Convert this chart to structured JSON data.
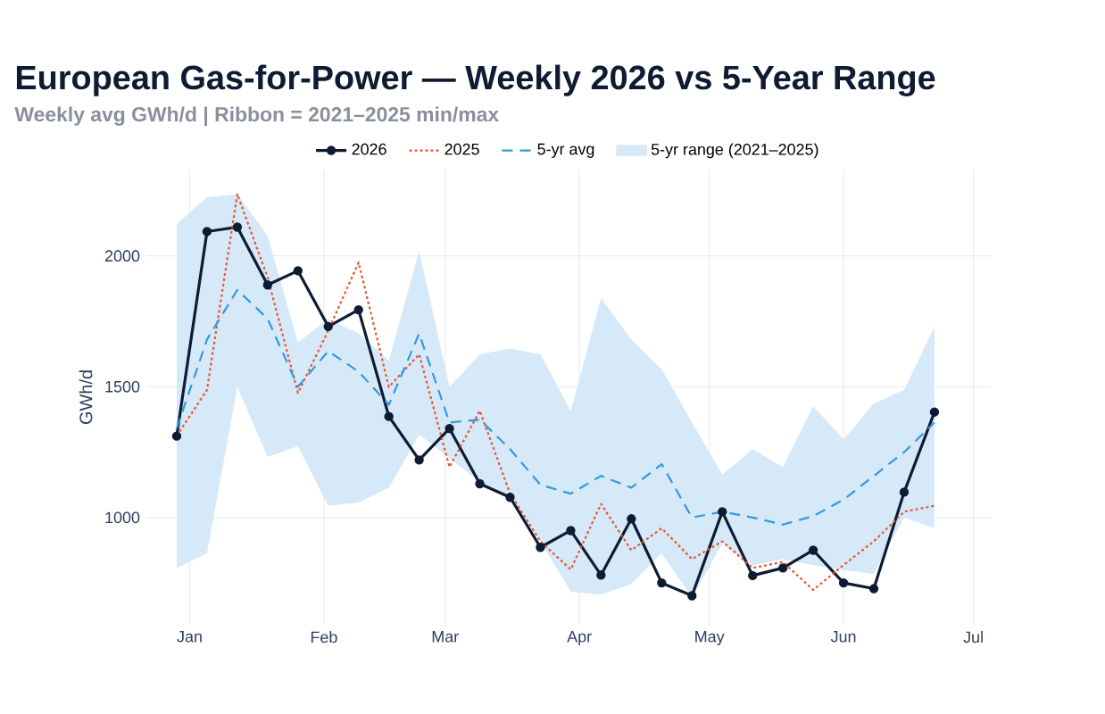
{
  "chart_data": {
    "type": "line",
    "title": "European Gas-for-Power — Weekly 2026 vs 5-Year Range",
    "subtitle": "Weekly avg GWh/d | Ribbon = 2021–2025 min/max",
    "ylabel": "GWh/d",
    "x": [
      "2025-12-29",
      "2026-01-05",
      "2026-01-12",
      "2026-01-19",
      "2026-01-26",
      "2026-02-02",
      "2026-02-09",
      "2026-02-16",
      "2026-02-23",
      "2026-03-02",
      "2026-03-09",
      "2026-03-16",
      "2026-03-23",
      "2026-03-30",
      "2026-04-06",
      "2026-04-13",
      "2026-04-20",
      "2026-04-27",
      "2026-05-04",
      "2026-05-11",
      "2026-05-18",
      "2026-05-25",
      "2026-06-01",
      "2026-06-08",
      "2026-06-15",
      "2026-06-22"
    ],
    "series": [
      {
        "name": "2026",
        "color": "#0d1b33",
        "marker": "circle",
        "line_style": "solid",
        "values": [
          1311,
          2093,
          2110,
          1889,
          1943,
          1730,
          1794,
          1386,
          1220,
          1340,
          1129,
          1077,
          886,
          950,
          780,
          995,
          750,
          701,
          1022,
          778,
          807,
          875,
          750,
          728,
          1097,
          1403
        ]
      },
      {
        "name": "2025",
        "color": "#e8552f",
        "line_style": "dotted",
        "values": [
          1311,
          1488,
          2236,
          1918,
          1476,
          1714,
          1975,
          1499,
          1624,
          1193,
          1408,
          1091,
          909,
          801,
          1052,
          875,
          959,
          841,
          909,
          807,
          830,
          723,
          818,
          909,
          1022,
          1045
        ]
      },
      {
        "name": "5-yr avg",
        "color": "#3399dd",
        "line_style": "dashed",
        "values": [
          1340,
          1680,
          1870,
          1760,
          1500,
          1636,
          1558,
          1431,
          1703,
          1363,
          1374,
          1261,
          1125,
          1091,
          1159,
          1114,
          1204,
          1000,
          1022,
          1000,
          973,
          1005,
          1068,
          1159,
          1250,
          1363
        ]
      },
      {
        "name": "5-yr range (2021–2025)",
        "color": "#d6e9f8",
        "values": [
          null,
          null,
          null,
          null,
          null,
          null,
          null,
          null,
          null,
          null,
          null,
          null,
          null,
          null,
          null,
          null,
          null,
          null,
          null,
          null,
          null,
          null,
          null,
          null,
          null,
          null
        ],
        "upper": [
          2122,
          2224,
          2236,
          2077,
          1669,
          1760,
          1703,
          1600,
          2020,
          1499,
          1624,
          1646,
          1624,
          1408,
          1839,
          1680,
          1567,
          1363,
          1165,
          1261,
          1193,
          1426,
          1299,
          1435,
          1488,
          1730
        ],
        "lower": [
          807,
          864,
          1499,
          1231,
          1272,
          1045,
          1057,
          1114,
          1317,
          1227,
          1136,
          1068,
          909,
          716,
          705,
          746,
          864,
          694,
          900,
          818,
          841,
          818,
          800,
          784,
          1000,
          959
        ]
      }
    ],
    "xlim": [
      "2025-12-22",
      "2026-07-05"
    ],
    "xticks": [
      {
        "value": "2026-01-01",
        "label": "Jan"
      },
      {
        "value": "2026-02-01",
        "label": "Feb"
      },
      {
        "value": "2026-03-01",
        "label": "Mar"
      },
      {
        "value": "2026-04-01",
        "label": "Apr"
      },
      {
        "value": "2026-05-01",
        "label": "May"
      },
      {
        "value": "2026-06-01",
        "label": "Jun"
      },
      {
        "value": "2026-07-01",
        "label": "Jul"
      }
    ],
    "ylim": [
      590,
      2330
    ],
    "yticks": [
      1000,
      1500,
      2000
    ],
    "grid": true,
    "legend": "top"
  }
}
